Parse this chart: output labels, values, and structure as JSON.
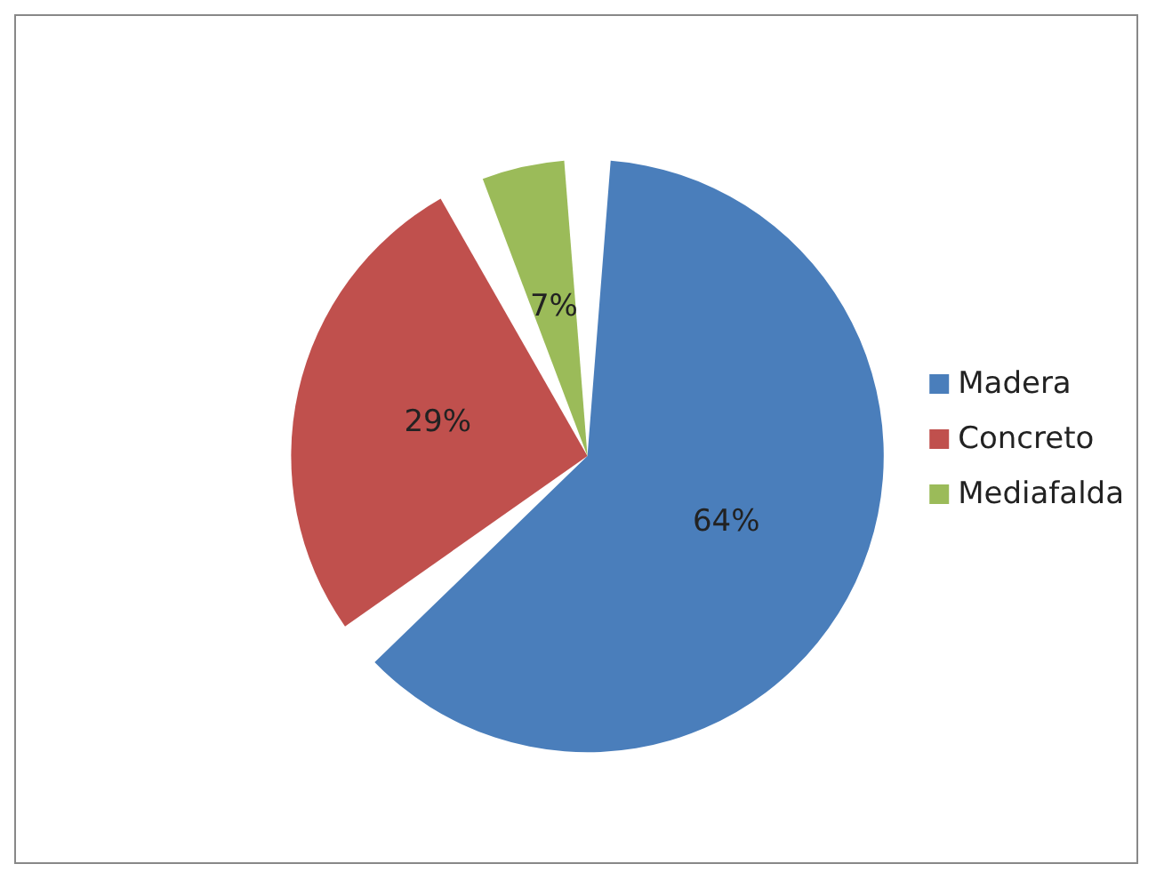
{
  "chart_data": {
    "type": "pie",
    "categories": [
      "Madera",
      "Concreto",
      "Mediafalda"
    ],
    "values": [
      64,
      29,
      7
    ],
    "colors": [
      "#4a7ebb",
      "#c0504d",
      "#9bbb59"
    ],
    "value_labels": [
      "64%",
      "29%",
      "7%"
    ],
    "legend": "right"
  }
}
